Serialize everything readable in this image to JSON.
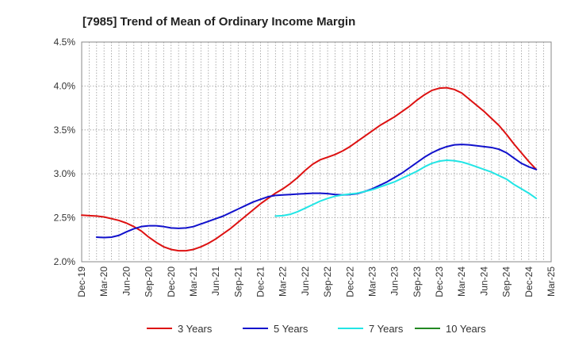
{
  "chart_data": {
    "type": "line",
    "title": "[7985]  Trend of Mean of Ordinary Income Margin",
    "xlabel": "",
    "ylabel": "",
    "x_tick_labels": [
      "Dec-19",
      "Mar-20",
      "Jun-20",
      "Sep-20",
      "Dec-20",
      "Mar-21",
      "Jun-21",
      "Sep-21",
      "Dec-21",
      "Mar-22",
      "Jun-22",
      "Sep-22",
      "Dec-22",
      "Mar-23",
      "Jun-23",
      "Sep-23",
      "Dec-23",
      "Mar-24",
      "Jun-24",
      "Sep-24",
      "Dec-24",
      "Mar-25"
    ],
    "y_tick_labels": [
      "2.0%",
      "2.5%",
      "3.0%",
      "3.5%",
      "4.0%",
      "4.5%"
    ],
    "ylim": [
      2.0,
      4.5
    ],
    "grid": true,
    "legend_position": "bottom",
    "series": [
      {
        "name": "3 Years",
        "color": "#dd1111",
        "points": [
          [
            "Dec-19",
            2.53
          ],
          [
            "Jan-20",
            2.525
          ],
          [
            "Feb-20",
            2.52
          ],
          [
            "Mar-20",
            2.51
          ],
          [
            "Apr-20",
            2.49
          ],
          [
            "May-20",
            2.47
          ],
          [
            "Jun-20",
            2.44
          ],
          [
            "Jul-20",
            2.4
          ],
          [
            "Aug-20",
            2.35
          ],
          [
            "Sep-20",
            2.28
          ],
          [
            "Oct-20",
            2.22
          ],
          [
            "Nov-20",
            2.17
          ],
          [
            "Dec-20",
            2.14
          ],
          [
            "Jan-21",
            2.125
          ],
          [
            "Feb-21",
            2.125
          ],
          [
            "Mar-21",
            2.14
          ],
          [
            "Apr-21",
            2.17
          ],
          [
            "May-21",
            2.21
          ],
          [
            "Jun-21",
            2.26
          ],
          [
            "Jul-21",
            2.32
          ],
          [
            "Aug-21",
            2.38
          ],
          [
            "Sep-21",
            2.45
          ],
          [
            "Oct-21",
            2.52
          ],
          [
            "Nov-21",
            2.59
          ],
          [
            "Dec-21",
            2.66
          ],
          [
            "Jan-22",
            2.72
          ],
          [
            "Feb-22",
            2.78
          ],
          [
            "Mar-22",
            2.83
          ],
          [
            "Apr-22",
            2.89
          ],
          [
            "May-22",
            2.96
          ],
          [
            "Jun-22",
            3.04
          ],
          [
            "Jul-22",
            3.11
          ],
          [
            "Aug-22",
            3.16
          ],
          [
            "Sep-22",
            3.19
          ],
          [
            "Oct-22",
            3.22
          ],
          [
            "Nov-22",
            3.26
          ],
          [
            "Dec-22",
            3.31
          ],
          [
            "Jan-23",
            3.37
          ],
          [
            "Feb-23",
            3.43
          ],
          [
            "Mar-23",
            3.49
          ],
          [
            "Apr-23",
            3.55
          ],
          [
            "May-23",
            3.6
          ],
          [
            "Jun-23",
            3.65
          ],
          [
            "Jul-23",
            3.71
          ],
          [
            "Aug-23",
            3.77
          ],
          [
            "Sep-23",
            3.84
          ],
          [
            "Oct-23",
            3.9
          ],
          [
            "Nov-23",
            3.95
          ],
          [
            "Dec-23",
            3.975
          ],
          [
            "Jan-24",
            3.98
          ],
          [
            "Feb-24",
            3.96
          ],
          [
            "Mar-24",
            3.92
          ],
          [
            "Apr-24",
            3.85
          ],
          [
            "May-24",
            3.78
          ],
          [
            "Jun-24",
            3.71
          ],
          [
            "Jul-24",
            3.63
          ],
          [
            "Aug-24",
            3.55
          ],
          [
            "Sep-24",
            3.45
          ],
          [
            "Oct-24",
            3.34
          ],
          [
            "Nov-24",
            3.24
          ],
          [
            "Dec-24",
            3.14
          ],
          [
            "Jan-25",
            3.05
          ]
        ]
      },
      {
        "name": "5 Years",
        "color": "#1111cc",
        "points": [
          [
            "Feb-20",
            2.28
          ],
          [
            "Mar-20",
            2.275
          ],
          [
            "Apr-20",
            2.28
          ],
          [
            "May-20",
            2.3
          ],
          [
            "Jun-20",
            2.34
          ],
          [
            "Jul-20",
            2.375
          ],
          [
            "Aug-20",
            2.4
          ],
          [
            "Sep-20",
            2.41
          ],
          [
            "Oct-20",
            2.41
          ],
          [
            "Nov-20",
            2.4
          ],
          [
            "Dec-20",
            2.385
          ],
          [
            "Jan-21",
            2.38
          ],
          [
            "Feb-21",
            2.385
          ],
          [
            "Mar-21",
            2.4
          ],
          [
            "Apr-21",
            2.43
          ],
          [
            "May-21",
            2.46
          ],
          [
            "Jun-21",
            2.49
          ],
          [
            "Jul-21",
            2.52
          ],
          [
            "Aug-21",
            2.56
          ],
          [
            "Sep-21",
            2.6
          ],
          [
            "Oct-21",
            2.64
          ],
          [
            "Nov-21",
            2.68
          ],
          [
            "Dec-21",
            2.71
          ],
          [
            "Jan-22",
            2.74
          ],
          [
            "Feb-22",
            2.755
          ],
          [
            "Mar-22",
            2.76
          ],
          [
            "Apr-22",
            2.765
          ],
          [
            "May-22",
            2.77
          ],
          [
            "Jun-22",
            2.775
          ],
          [
            "Jul-22",
            2.78
          ],
          [
            "Aug-22",
            2.78
          ],
          [
            "Sep-22",
            2.775
          ],
          [
            "Oct-22",
            2.765
          ],
          [
            "Nov-22",
            2.76
          ],
          [
            "Dec-22",
            2.765
          ],
          [
            "Jan-23",
            2.775
          ],
          [
            "Feb-23",
            2.8
          ],
          [
            "Mar-23",
            2.83
          ],
          [
            "Apr-23",
            2.87
          ],
          [
            "May-23",
            2.91
          ],
          [
            "Jun-23",
            2.96
          ],
          [
            "Jul-23",
            3.01
          ],
          [
            "Aug-23",
            3.07
          ],
          [
            "Sep-23",
            3.13
          ],
          [
            "Oct-23",
            3.19
          ],
          [
            "Nov-23",
            3.24
          ],
          [
            "Dec-23",
            3.28
          ],
          [
            "Jan-24",
            3.31
          ],
          [
            "Feb-24",
            3.33
          ],
          [
            "Mar-24",
            3.335
          ],
          [
            "Apr-24",
            3.33
          ],
          [
            "May-24",
            3.32
          ],
          [
            "Jun-24",
            3.31
          ],
          [
            "Jul-24",
            3.3
          ],
          [
            "Aug-24",
            3.28
          ],
          [
            "Sep-24",
            3.24
          ],
          [
            "Oct-24",
            3.18
          ],
          [
            "Nov-24",
            3.12
          ],
          [
            "Dec-24",
            3.08
          ],
          [
            "Jan-25",
            3.05
          ]
        ]
      },
      {
        "name": "7 Years",
        "color": "#22e5e5",
        "points": [
          [
            "Feb-22",
            2.52
          ],
          [
            "Mar-22",
            2.525
          ],
          [
            "Apr-22",
            2.54
          ],
          [
            "May-22",
            2.57
          ],
          [
            "Jun-22",
            2.61
          ],
          [
            "Jul-22",
            2.65
          ],
          [
            "Aug-22",
            2.69
          ],
          [
            "Sep-22",
            2.72
          ],
          [
            "Oct-22",
            2.745
          ],
          [
            "Nov-22",
            2.76
          ],
          [
            "Dec-22",
            2.77
          ],
          [
            "Jan-23",
            2.78
          ],
          [
            "Feb-23",
            2.8
          ],
          [
            "Mar-23",
            2.82
          ],
          [
            "Apr-23",
            2.85
          ],
          [
            "May-23",
            2.88
          ],
          [
            "Jun-23",
            2.91
          ],
          [
            "Jul-23",
            2.95
          ],
          [
            "Aug-23",
            2.99
          ],
          [
            "Sep-23",
            3.03
          ],
          [
            "Oct-23",
            3.08
          ],
          [
            "Nov-23",
            3.12
          ],
          [
            "Dec-23",
            3.145
          ],
          [
            "Jan-24",
            3.155
          ],
          [
            "Feb-24",
            3.15
          ],
          [
            "Mar-24",
            3.135
          ],
          [
            "Apr-24",
            3.11
          ],
          [
            "May-24",
            3.08
          ],
          [
            "Jun-24",
            3.05
          ],
          [
            "Jul-24",
            3.02
          ],
          [
            "Aug-24",
            2.98
          ],
          [
            "Sep-24",
            2.94
          ],
          [
            "Oct-24",
            2.88
          ],
          [
            "Nov-24",
            2.83
          ],
          [
            "Dec-24",
            2.78
          ],
          [
            "Jan-25",
            2.72
          ]
        ]
      },
      {
        "name": "10 Years",
        "color": "#228822",
        "points": []
      }
    ]
  }
}
